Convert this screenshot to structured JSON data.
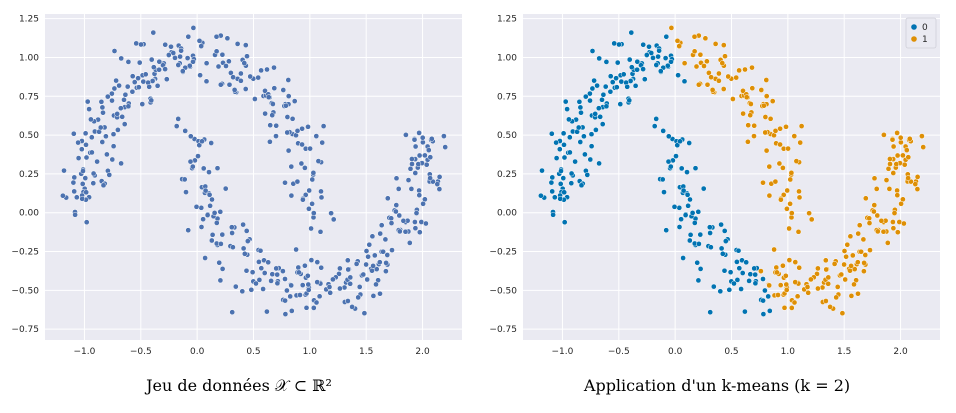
{
  "captions": {
    "left": "Jeu de données 𝒳 ⊂ ℝ²",
    "right": "Application d'un k-means (k = 2)"
  },
  "colors": {
    "single": "#4c72b0",
    "cluster0": "#0173b2",
    "cluster1": "#de8f05",
    "background": "#eaeaf2"
  },
  "chart_data": [
    {
      "type": "scatter",
      "title": "",
      "xlabel": "",
      "ylabel": "",
      "xlim": [
        -1.35,
        2.35
      ],
      "ylim": [
        -0.82,
        1.28
      ],
      "xticks": [
        -1.0,
        -0.5,
        0.0,
        0.5,
        1.0,
        1.5,
        2.0
      ],
      "xtick_labels": [
        "−1.0",
        "−0.5",
        "0.0",
        "0.5",
        "1.0",
        "1.5",
        "2.0"
      ],
      "yticks": [
        -0.75,
        -0.5,
        -0.25,
        0.0,
        0.25,
        0.5,
        0.75,
        1.0,
        1.25
      ],
      "ytick_labels": [
        "−0.75",
        "−0.50",
        "−0.25",
        "0.00",
        "0.25",
        "0.50",
        "0.75",
        "1.00",
        "1.25"
      ],
      "grid": true,
      "description_of_data": "Two interleaving half-moons (~500 noisy points)",
      "series": [
        {
          "points": "two-moons",
          "count": 500
        }
      ]
    },
    {
      "type": "scatter",
      "title": "",
      "xlabel": "",
      "ylabel": "",
      "xlim": [
        -1.35,
        2.35
      ],
      "ylim": [
        -0.82,
        1.28
      ],
      "xticks": [
        -1.0,
        -0.5,
        0.0,
        0.5,
        1.0,
        1.5,
        2.0
      ],
      "xtick_labels": [
        "−1.0",
        "−0.5",
        "0.0",
        "0.5",
        "1.0",
        "1.5",
        "2.0"
      ],
      "yticks": [
        -0.75,
        -0.5,
        -0.25,
        0.0,
        0.25,
        0.5,
        0.75,
        1.0,
        1.25
      ],
      "ytick_labels": [
        "−0.75",
        "−0.50",
        "−0.25",
        "0.00",
        "0.25",
        "0.50",
        "0.75",
        "1.00",
        "1.25"
      ],
      "grid": true,
      "legend_position": "top-right",
      "series": [
        {
          "name": "0",
          "cluster_rule": "x < 0.55 - 0.55*y"
        },
        {
          "name": "1",
          "cluster_rule": "x >= 0.55 - 0.55*y"
        }
      ]
    }
  ]
}
